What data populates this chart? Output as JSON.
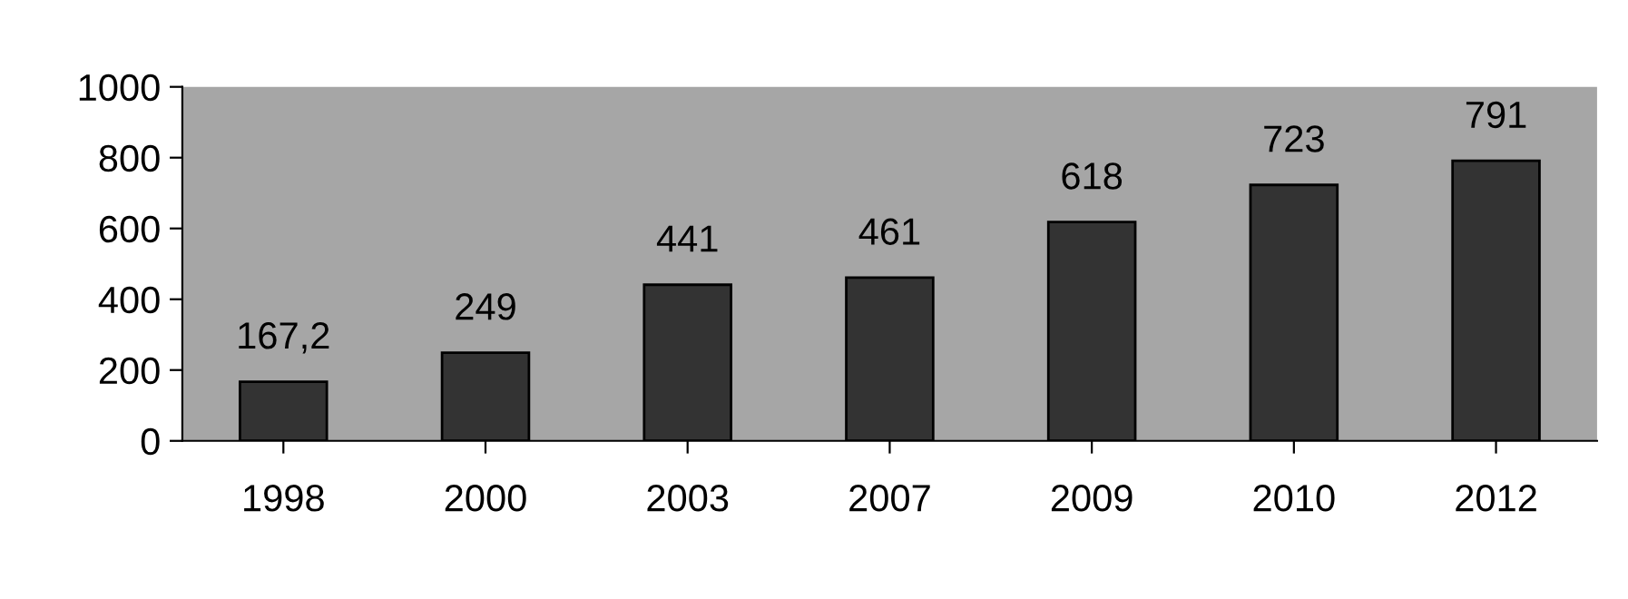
{
  "chart_data": {
    "type": "bar",
    "categories": [
      "1998",
      "2000",
      "2003",
      "2007",
      "2009",
      "2010",
      "2012"
    ],
    "values": [
      167.2,
      249,
      441,
      461,
      618,
      723,
      791
    ],
    "value_labels": [
      "167,2",
      "249",
      "441",
      "461",
      "618",
      "723",
      "791"
    ],
    "color": "#333333",
    "ylim": [
      0,
      1000
    ],
    "yticks": [
      0,
      200,
      400,
      600,
      800,
      1000
    ]
  }
}
